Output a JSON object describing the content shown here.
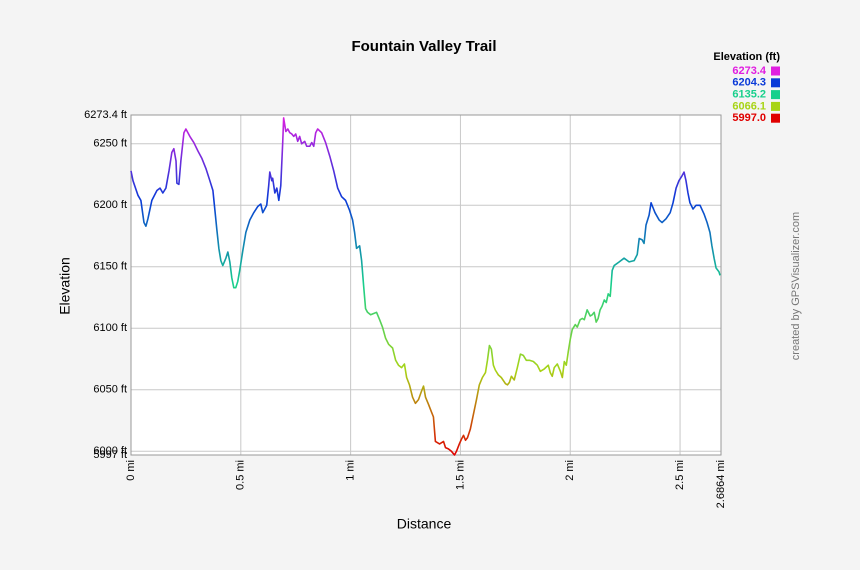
{
  "chart_data": {
    "type": "line",
    "title": "Fountain Valley Trail",
    "x_label": "Distance",
    "y_label": "Elevation",
    "credit": "created by GPSVisualizer.com",
    "x": [
      0.0,
      0.009,
      0.032,
      0.045,
      0.059,
      0.068,
      0.077,
      0.095,
      0.118,
      0.132,
      0.145,
      0.159,
      0.173,
      0.186,
      0.195,
      0.205,
      0.209,
      0.218,
      0.227,
      0.241,
      0.25,
      0.268,
      0.286,
      0.305,
      0.323,
      0.341,
      0.359,
      0.373,
      0.382,
      0.391,
      0.4,
      0.409,
      0.418,
      0.432,
      0.441,
      0.45,
      0.459,
      0.468,
      0.477,
      0.486,
      0.495,
      0.509,
      0.523,
      0.541,
      0.559,
      0.577,
      0.591,
      0.6,
      0.609,
      0.618,
      0.627,
      0.632,
      0.641,
      0.645,
      0.655,
      0.664,
      0.673,
      0.682,
      0.691,
      0.695,
      0.705,
      0.714,
      0.723,
      0.732,
      0.741,
      0.75,
      0.759,
      0.768,
      0.777,
      0.791,
      0.8,
      0.814,
      0.823,
      0.832,
      0.841,
      0.85,
      0.868,
      0.886,
      0.905,
      0.923,
      0.941,
      0.959,
      0.977,
      0.995,
      1.009,
      1.018,
      1.027,
      1.041,
      1.05,
      1.059,
      1.068,
      1.077,
      1.091,
      1.105,
      1.118,
      1.132,
      1.145,
      1.159,
      1.173,
      1.191,
      1.205,
      1.218,
      1.232,
      1.245,
      1.255,
      1.268,
      1.282,
      1.295,
      1.309,
      1.323,
      1.332,
      1.341,
      1.355,
      1.368,
      1.377,
      1.386,
      1.405,
      1.423,
      1.432,
      1.445,
      1.459,
      1.473,
      1.482,
      1.495,
      1.505,
      1.514,
      1.523,
      1.532,
      1.545,
      1.559,
      1.573,
      1.586,
      1.6,
      1.614,
      1.623,
      1.632,
      1.641,
      1.65,
      1.659,
      1.673,
      1.686,
      1.705,
      1.714,
      1.723,
      1.732,
      1.745,
      1.759,
      1.773,
      1.786,
      1.8,
      1.814,
      1.832,
      1.85,
      1.864,
      1.882,
      1.9,
      1.909,
      1.918,
      1.927,
      1.941,
      1.955,
      1.964,
      1.973,
      1.982,
      1.991,
      2.0,
      2.009,
      2.023,
      2.032,
      2.045,
      2.055,
      2.064,
      2.077,
      2.091,
      2.1,
      2.109,
      2.118,
      2.127,
      2.136,
      2.145,
      2.155,
      2.164,
      2.173,
      2.182,
      2.191,
      2.2,
      2.223,
      2.245,
      2.268,
      2.291,
      2.305,
      2.314,
      2.327,
      2.336,
      2.345,
      2.359,
      2.368,
      2.377,
      2.386,
      2.405,
      2.418,
      2.436,
      2.455,
      2.468,
      2.482,
      2.495,
      2.509,
      2.518,
      2.527,
      2.536,
      2.545,
      2.559,
      2.573,
      2.591,
      2.609,
      2.623,
      2.636,
      2.645,
      2.655,
      2.664,
      2.677,
      2.682
    ],
    "values": [
      6228,
      6220,
      6208,
      6204,
      6186,
      6183,
      6189,
      6204,
      6212,
      6214,
      6210,
      6214,
      6228,
      6243,
      6246,
      6236,
      6218,
      6217,
      6236,
      6259,
      6262,
      6256,
      6251,
      6244,
      6238,
      6230,
      6220,
      6212,
      6196,
      6180,
      6165,
      6155,
      6151,
      6157,
      6162,
      6154,
      6141,
      6133,
      6133,
      6138,
      6147,
      6163,
      6178,
      6188,
      6194,
      6199,
      6201,
      6194,
      6197,
      6200,
      6216,
      6227,
      6220,
      6222,
      6210,
      6214,
      6204,
      6216,
      6252,
      6271,
      6260,
      6262,
      6259,
      6258,
      6256,
      6258,
      6252,
      6256,
      6250,
      6252,
      6248,
      6248,
      6251,
      6248,
      6259,
      6262,
      6259,
      6251,
      6240,
      6228,
      6214,
      6207,
      6204,
      6196,
      6188,
      6178,
      6165,
      6167,
      6155,
      6135,
      6116,
      6113,
      6111,
      6112,
      6113,
      6107,
      6101,
      6092,
      6087,
      6084,
      6074,
      6070,
      6068,
      6071,
      6060,
      6054,
      6044,
      6039,
      6042,
      6049,
      6053,
      6044,
      6038,
      6032,
      6028,
      6008,
      6006,
      6008,
      6003,
      6002,
      6000,
      5997,
      6000,
      6006,
      6010,
      6013,
      6009,
      6011,
      6018,
      6030,
      6042,
      6054,
      6060,
      6064,
      6074,
      6086,
      6083,
      6070,
      6066,
      6062,
      6060,
      6055,
      6054,
      6056,
      6061,
      6058,
      6068,
      6079,
      6078,
      6074,
      6074,
      6073,
      6070,
      6065,
      6067,
      6070,
      6064,
      6061,
      6068,
      6071,
      6065,
      6060,
      6073,
      6070,
      6081,
      6091,
      6099,
      6103,
      6101,
      6107,
      6108,
      6107,
      6115,
      6110,
      6111,
      6113,
      6105,
      6108,
      6115,
      6118,
      6123,
      6121,
      6128,
      6126,
      6147,
      6151,
      6154,
      6157,
      6154,
      6155,
      6160,
      6173,
      6172,
      6169,
      6184,
      6192,
      6202,
      6198,
      6194,
      6188,
      6186,
      6189,
      6194,
      6202,
      6214,
      6220,
      6224,
      6227,
      6220,
      6210,
      6202,
      6197,
      6200,
      6200,
      6193,
      6186,
      6178,
      6167,
      6157,
      6149,
      6146,
      6143
    ],
    "xlim": [
      0,
      2.6864
    ],
    "ylim": [
      5997,
      6273.4
    ],
    "xticks": [
      {
        "value": 0,
        "label": "0 mi"
      },
      {
        "value": 0.5,
        "label": "0.5 mi"
      },
      {
        "value": 1,
        "label": "1 mi"
      },
      {
        "value": 1.5,
        "label": "1.5 mi"
      },
      {
        "value": 2,
        "label": "2 mi"
      },
      {
        "value": 2.5,
        "label": "2.5 mi"
      },
      {
        "value": 2.6864,
        "label": "2.6864 mi"
      }
    ],
    "yticks": [
      {
        "value": 5997,
        "label": "5997 ft"
      },
      {
        "value": 6000,
        "label": "6000 ft"
      },
      {
        "value": 6050,
        "label": "6050 ft"
      },
      {
        "value": 6100,
        "label": "6100 ft"
      },
      {
        "value": 6150,
        "label": "6150 ft"
      },
      {
        "value": 6200,
        "label": "6200 ft"
      },
      {
        "value": 6250,
        "label": "6250 ft"
      },
      {
        "value": 6273.4,
        "label": "6273.4 ft"
      }
    ],
    "grid": true,
    "legend": {
      "title": "Elevation (ft)",
      "position": "top-right",
      "items": [
        {
          "value": 6273.4,
          "label": "6273.4",
          "color": "#e01ee0"
        },
        {
          "value": 6204.3,
          "label": "6204.3",
          "color": "#0a3ad8"
        },
        {
          "value": 6135.2,
          "label": "6135.2",
          "color": "#18d08c"
        },
        {
          "value": 6066.1,
          "label": "6066.1",
          "color": "#a8d416"
        },
        {
          "value": 5997.0,
          "label": "5997.0",
          "color": "#e00000"
        }
      ]
    }
  }
}
